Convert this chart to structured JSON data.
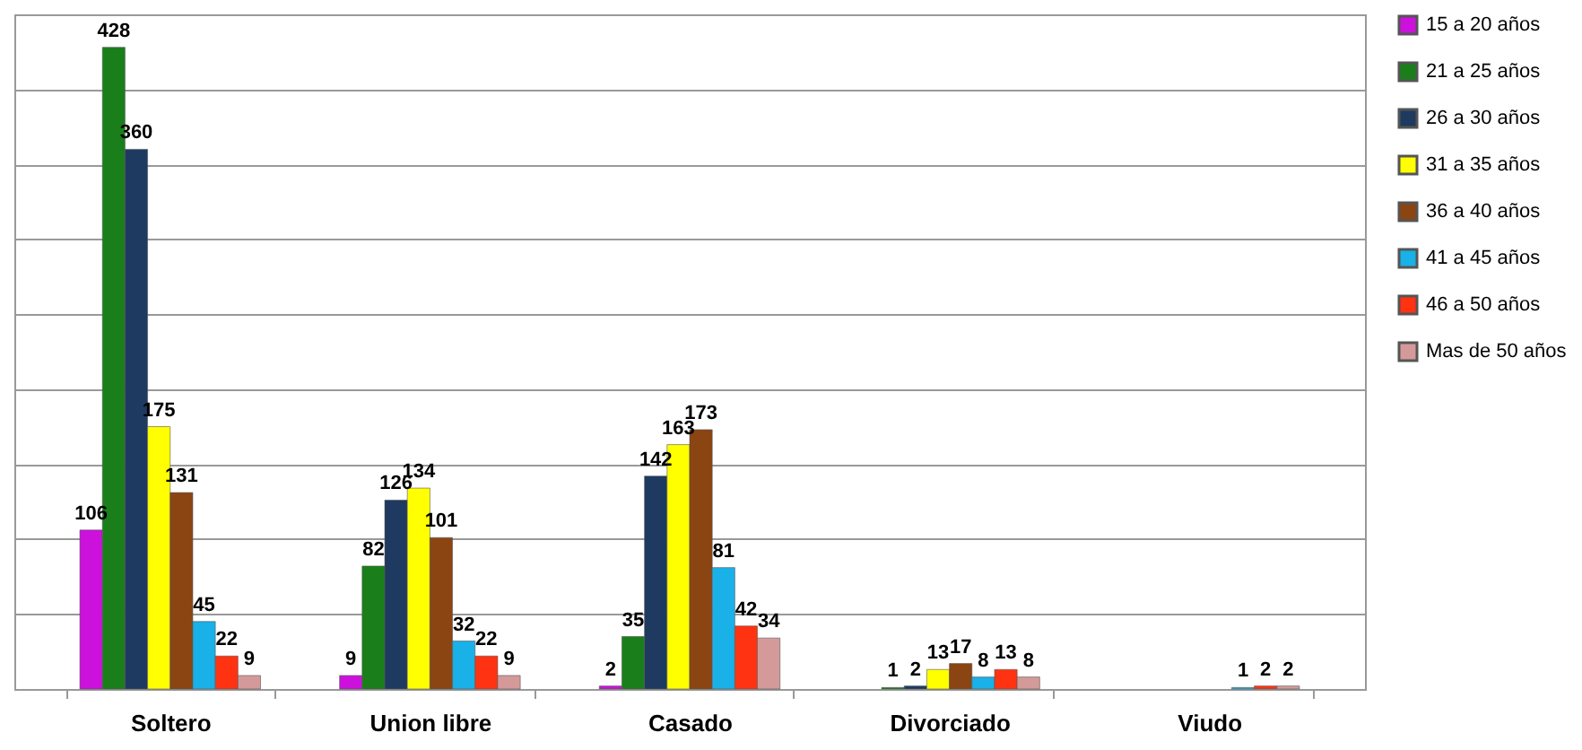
{
  "chart_data": {
    "type": "bar",
    "categories": [
      "Soltero",
      "Union libre",
      "Casado",
      "Divorciado",
      "Viudo"
    ],
    "series": [
      {
        "name": "15 a 20 años",
        "color": "#cc11dd",
        "values": [
          106,
          9,
          2,
          null,
          null
        ]
      },
      {
        "name": "21 a 25 años",
        "color": "#1a7f1a",
        "values": [
          428,
          82,
          35,
          1,
          null
        ]
      },
      {
        "name": "26 a 30 años",
        "color": "#1f3a60",
        "values": [
          360,
          126,
          142,
          2,
          null
        ]
      },
      {
        "name": "31 a 35 años",
        "color": "#ffff00",
        "values": [
          175,
          134,
          163,
          13,
          null
        ]
      },
      {
        "name": "36 a 40 años",
        "color": "#8b4513",
        "values": [
          131,
          101,
          173,
          17,
          null
        ]
      },
      {
        "name": "41 a 45 años",
        "color": "#1ab0e8",
        "values": [
          45,
          32,
          81,
          8,
          1
        ]
      },
      {
        "name": "46 a 50 años",
        "color": "#ff3311",
        "values": [
          22,
          22,
          42,
          13,
          2
        ]
      },
      {
        "name": "Mas de 50 años",
        "color": "#d49a9a",
        "values": [
          9,
          9,
          34,
          8,
          2
        ]
      }
    ],
    "ylim": [
      0,
      450
    ],
    "yticks": [
      {
        "value": 0,
        "label": null
      },
      {
        "value": 50,
        "label": null
      },
      {
        "value": 100,
        "label": null
      },
      {
        "value": 150,
        "label": null
      },
      {
        "value": 200,
        "label": null
      },
      {
        "value": 250,
        "label": null
      },
      {
        "value": 300,
        "label": null
      },
      {
        "value": 350,
        "label": null
      },
      {
        "value": 400,
        "label": null
      },
      {
        "value": 450,
        "label": null
      }
    ],
    "grid": "y",
    "legend": "right",
    "tick_labels": "x",
    "data_labels": true
  }
}
